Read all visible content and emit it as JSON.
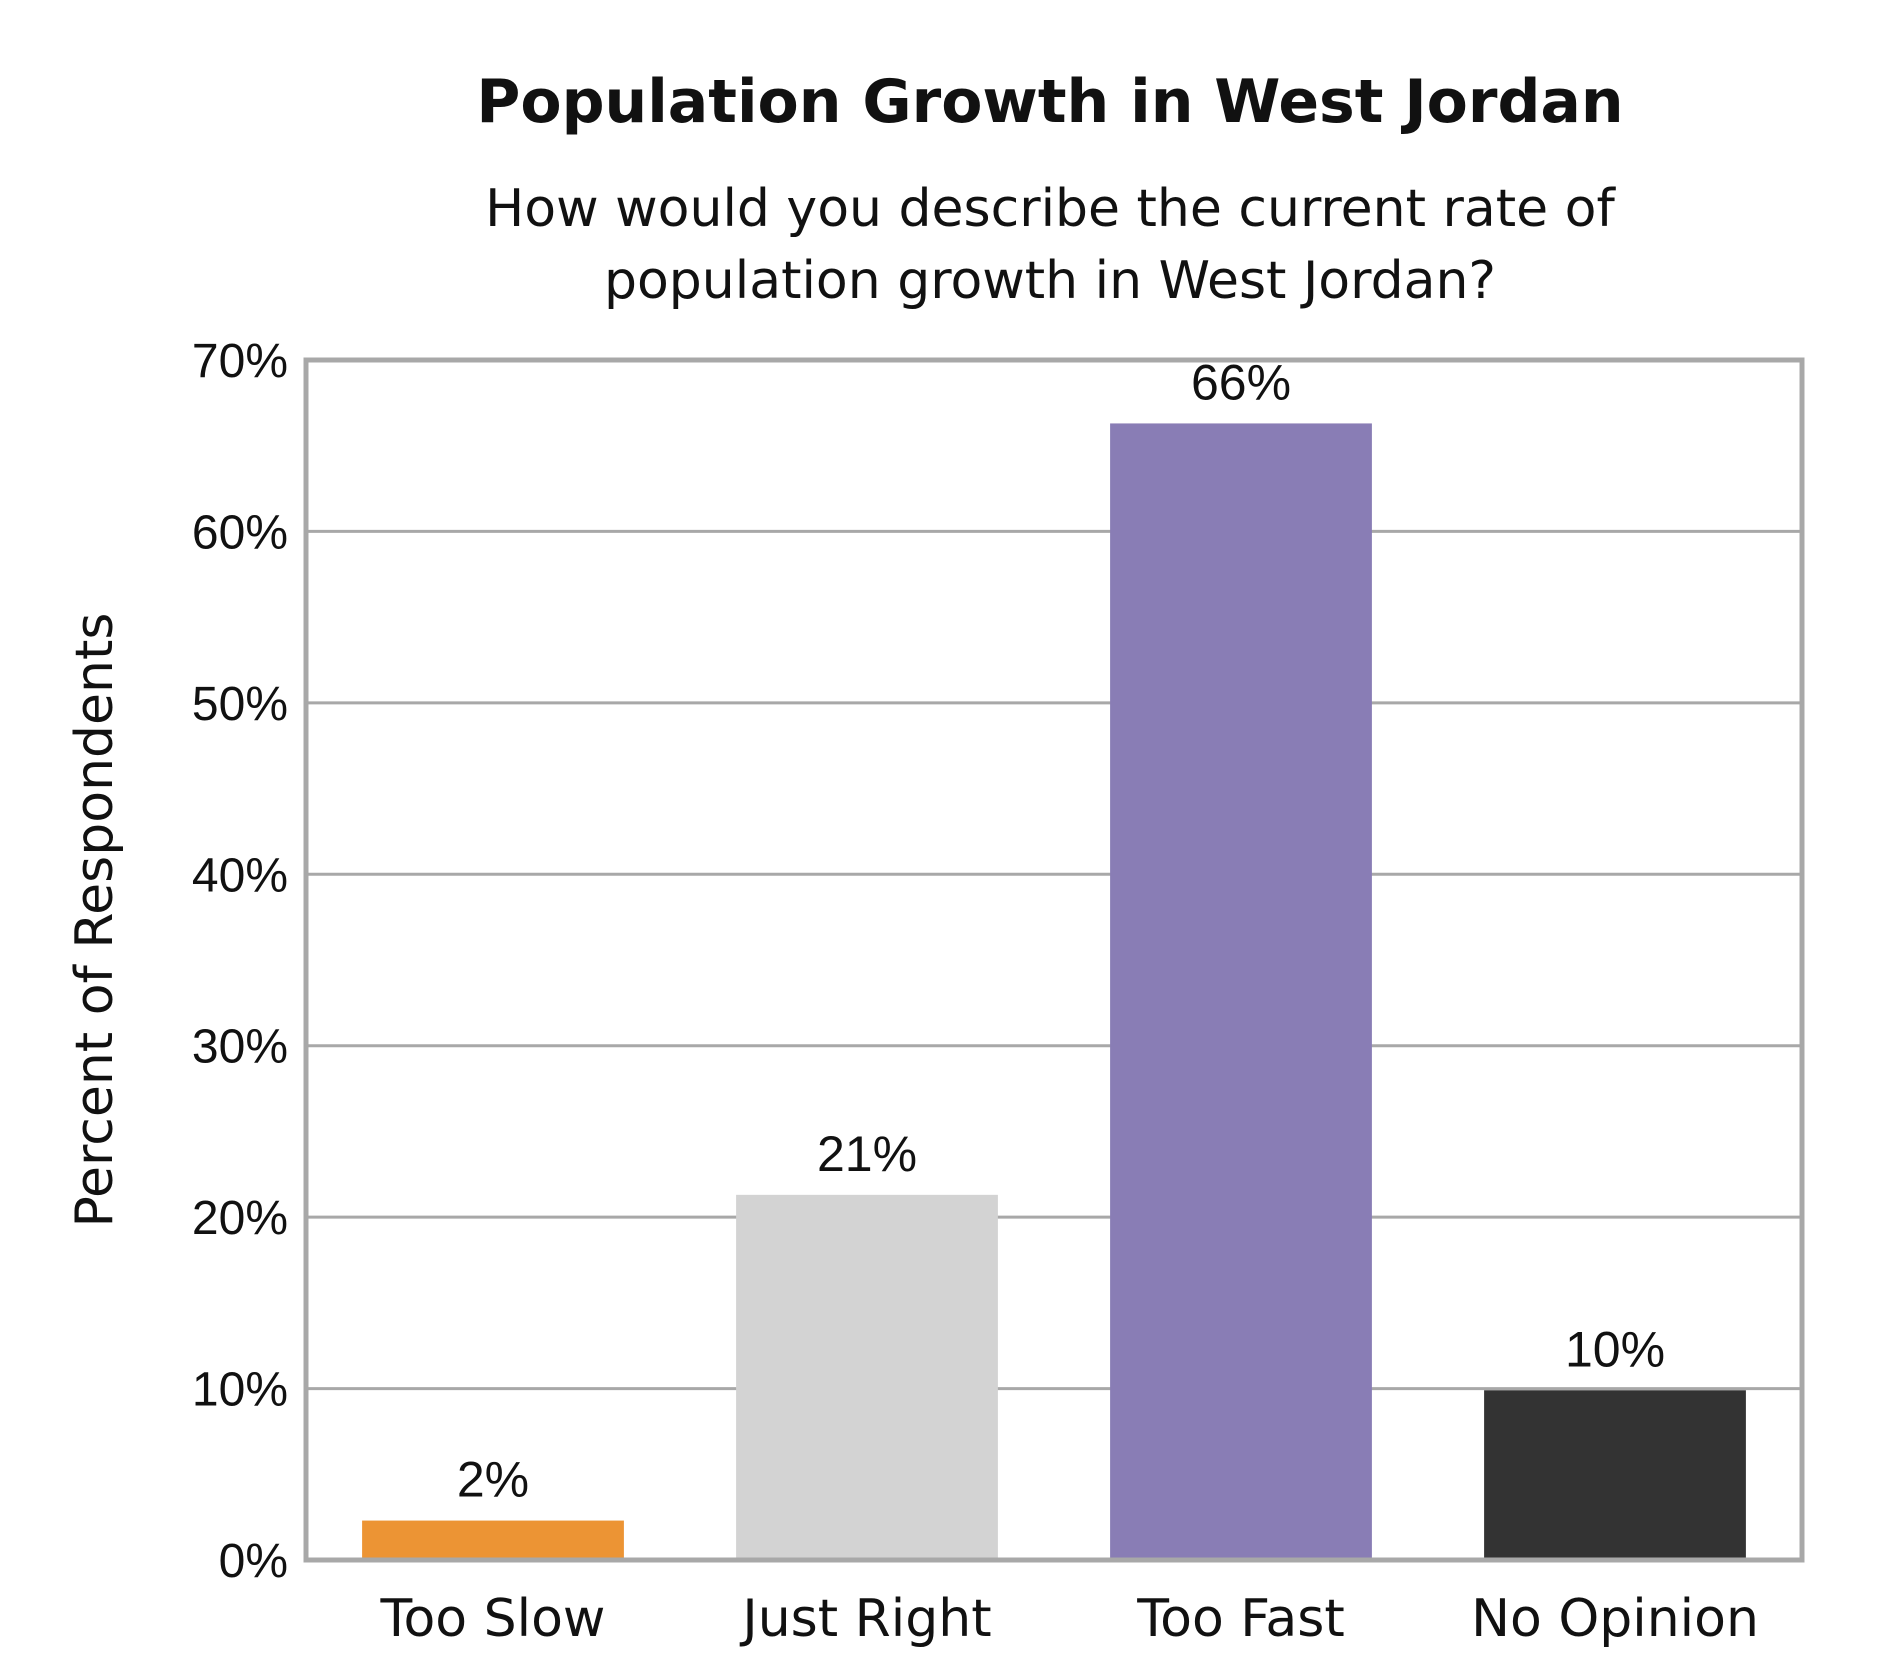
{
  "chart_data": {
    "type": "bar",
    "title": "Population Growth in West Jordan",
    "subtitle_lines": [
      "How would you describe the current rate of",
      "population growth in West Jordan?"
    ],
    "xlabel": "",
    "ylabel": "Percent of Respondents",
    "ylim": [
      0,
      70
    ],
    "yticks": [
      0,
      10,
      20,
      30,
      40,
      50,
      60,
      70
    ],
    "ytick_labels": [
      "0%",
      "10%",
      "20%",
      "30%",
      "40%",
      "50%",
      "60%",
      "70%"
    ],
    "grid": true,
    "legend": "none",
    "categories": [
      "Too Slow",
      "Just Right",
      "Too Fast",
      "No Opinion"
    ],
    "values": [
      2.3,
      21.3,
      66.3,
      9.9
    ],
    "data_labels": [
      "2%",
      "21%",
      "66%",
      "10%"
    ],
    "colors": [
      "#EC9434",
      "#D3D3D3",
      "#897DB5",
      "#333333"
    ],
    "frame_color": "#A8A8A8",
    "grid_color": "#A8A8A8"
  }
}
